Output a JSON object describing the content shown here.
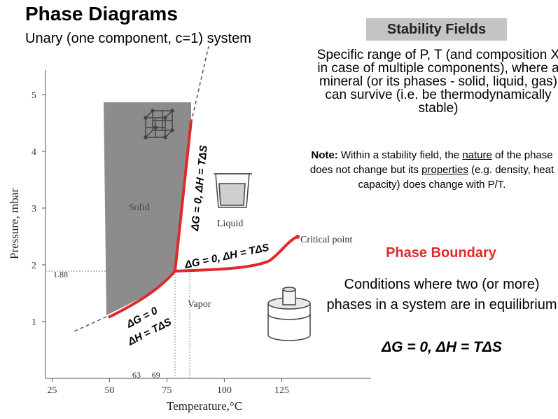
{
  "header": {
    "title": "Phase Diagrams",
    "subtitle": "Unary (one component, c=1) system"
  },
  "stability": {
    "heading": "Stability Fields",
    "description": "Specific range of P, T (and composition X in case of multiple components), where a mineral (or its phases - solid, liquid, gas) can survive (i.e. be thermodynamically stable)",
    "note_label": "Note:",
    "note_part1": " Within a stability field, the ",
    "note_word1": "nature",
    "note_part2": " of the phase does not change but its ",
    "note_word2": "properties",
    "note_part3": " (e.g. density, heat capacity) does change with P/T."
  },
  "boundary": {
    "heading": "Phase  Boundary",
    "description": "Conditions where two (or more) phases in a system are in equilibrium",
    "equation": "ΔG = 0, ΔH = TΔS"
  },
  "chart_data": {
    "type": "line",
    "xlabel": "Temperature,°C",
    "ylabel": "Pressure, mbar",
    "xlim": [
      10,
      140
    ],
    "ylim": [
      0.1,
      5.5
    ],
    "x_ticks": [
      "25",
      "50",
      "75",
      "100",
      "125"
    ],
    "y_ticks": [
      "1",
      "2",
      "3",
      "4",
      "5"
    ],
    "extra_ticks": {
      "x": [
        "63",
        "69"
      ],
      "y": [
        "1.88"
      ]
    },
    "regions": [
      "Solid",
      "Liquid",
      "Vapor"
    ],
    "critical_point_label": "Critical point",
    "triple_point": {
      "T": 63,
      "P": 1.88
    },
    "series": [
      {
        "name": "sublimation",
        "points": [
          [
            35,
            1.05
          ],
          [
            45,
            1.25
          ],
          [
            55,
            1.5
          ],
          [
            63,
            1.88
          ]
        ]
      },
      {
        "name": "melting",
        "points": [
          [
            63,
            1.88
          ],
          [
            69,
            4.55
          ]
        ]
      },
      {
        "name": "vaporization",
        "points": [
          [
            63,
            1.88
          ],
          [
            95,
            1.92
          ],
          [
            105,
            2.0
          ],
          [
            117,
            2.3
          ]
        ]
      }
    ],
    "boundary_labels": {
      "melting": "ΔG = 0, ΔH = TΔS",
      "vaporization": "ΔG = 0, ΔH = TΔS",
      "sublimation_line1": "ΔG = 0",
      "sublimation_line2": "ΔH = TΔS"
    },
    "colors": {
      "boundary": "#e02a2a",
      "solid_field": "#8c8c8c"
    }
  }
}
